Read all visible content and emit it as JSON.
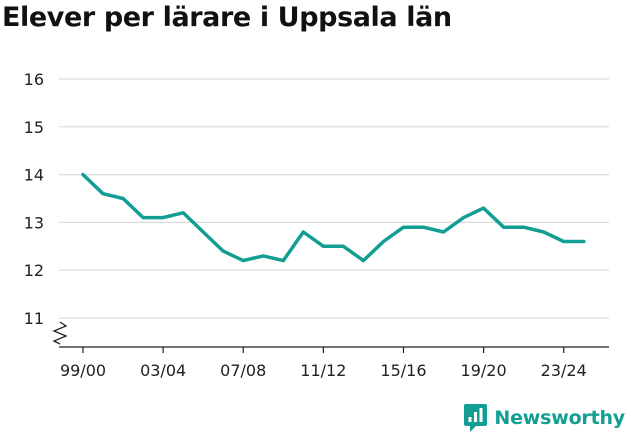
{
  "chart_data": {
    "type": "line",
    "title": "Elever per lärare i Uppsala län",
    "xlabel": "",
    "ylabel": "",
    "x": [
      "99/00",
      "00/01",
      "01/02",
      "02/03",
      "03/04",
      "04/05",
      "05/06",
      "06/07",
      "07/08",
      "08/09",
      "09/10",
      "10/11",
      "11/12",
      "12/13",
      "13/14",
      "14/15",
      "15/16",
      "16/17",
      "17/18",
      "18/19",
      "19/20",
      "20/21",
      "21/22",
      "22/23",
      "23/24",
      "24/25"
    ],
    "x_tick_labels": [
      "99/00",
      "03/04",
      "07/08",
      "11/12",
      "15/16",
      "19/20",
      "23/24"
    ],
    "y_ticks": [
      "11",
      "12",
      "13",
      "14",
      "15",
      "16"
    ],
    "ylim": [
      10.5,
      16
    ],
    "axis_break": true,
    "grid": true,
    "series": [
      {
        "name": "",
        "color": "#139e94",
        "values": [
          14.0,
          13.6,
          13.5,
          13.1,
          13.1,
          13.2,
          12.8,
          12.4,
          12.2,
          12.3,
          12.2,
          12.8,
          12.5,
          12.5,
          12.2,
          12.6,
          12.9,
          12.9,
          12.8,
          13.1,
          13.3,
          12.9,
          12.9,
          12.8,
          12.6,
          12.6
        ]
      }
    ]
  },
  "brand": {
    "name": "Newsworthy",
    "color": "#139e94",
    "icon": "newsworthy-logo-icon"
  }
}
